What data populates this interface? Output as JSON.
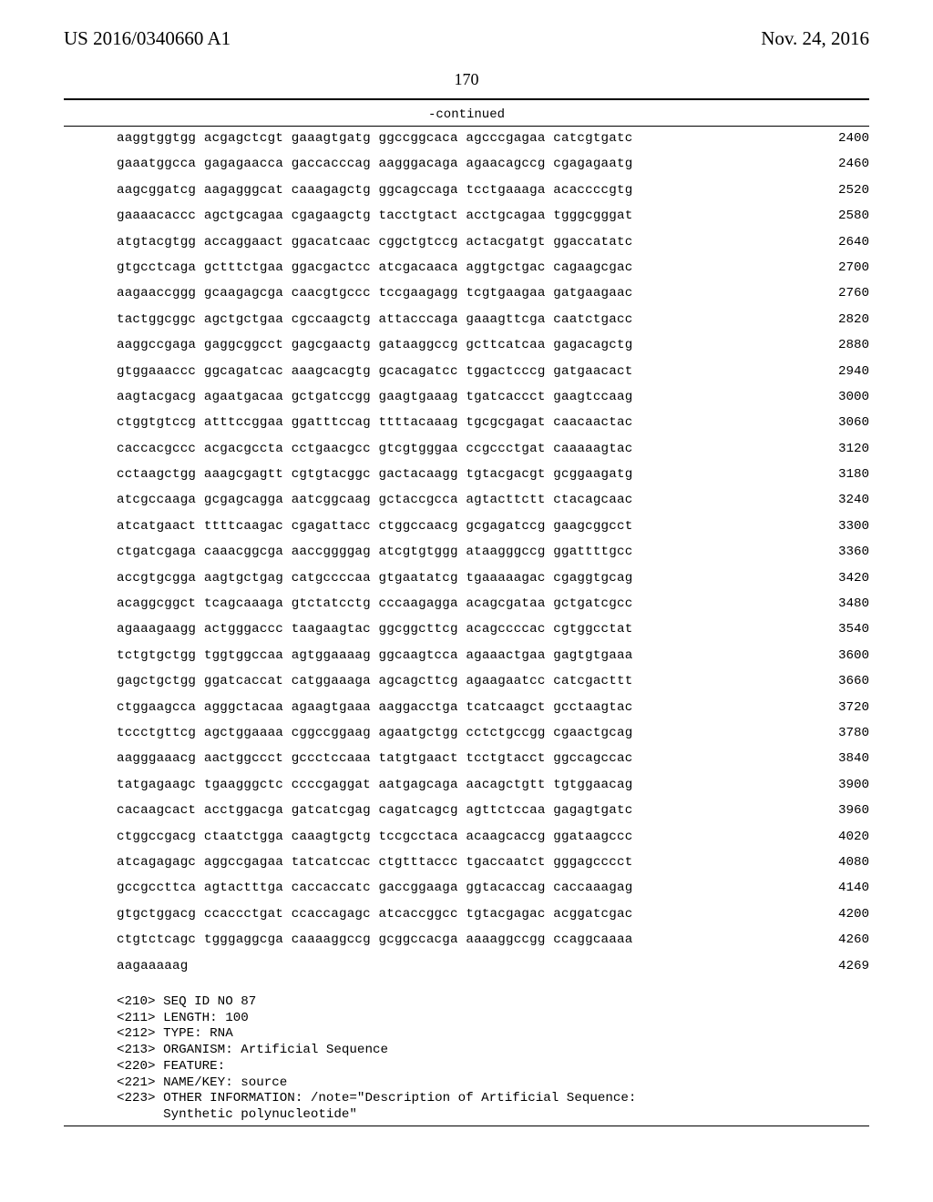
{
  "header": {
    "pub_number": "US 2016/0340660 A1",
    "pub_date": "Nov. 24, 2016"
  },
  "page_number": "170",
  "continued_label": "-continued",
  "sequence": {
    "rows": [
      {
        "g": [
          "aaggtggtgg",
          "acgagctcgt",
          "gaaagtgatg",
          "ggccggcaca",
          "agcccgagaa",
          "catcgtgatc"
        ],
        "pos": "2400"
      },
      {
        "g": [
          "gaaatggcca",
          "gagagaacca",
          "gaccacccag",
          "aagggacaga",
          "agaacagccg",
          "cgagagaatg"
        ],
        "pos": "2460"
      },
      {
        "g": [
          "aagcggatcg",
          "aagagggcat",
          "caaagagctg",
          "ggcagccaga",
          "tcctgaaaga",
          "acaccccgtg"
        ],
        "pos": "2520"
      },
      {
        "g": [
          "gaaaacaccc",
          "agctgcagaa",
          "cgagaagctg",
          "tacctgtact",
          "acctgcagaa",
          "tgggcgggat"
        ],
        "pos": "2580"
      },
      {
        "g": [
          "atgtacgtgg",
          "accaggaact",
          "ggacatcaac",
          "cggctgtccg",
          "actacgatgt",
          "ggaccatatc"
        ],
        "pos": "2640"
      },
      {
        "g": [
          "gtgcctcaga",
          "gctttctgaa",
          "ggacgactcc",
          "atcgacaaca",
          "aggtgctgac",
          "cagaagcgac"
        ],
        "pos": "2700"
      },
      {
        "g": [
          "aagaaccggg",
          "gcaagagcga",
          "caacgtgccc",
          "tccgaagagg",
          "tcgtgaagaa",
          "gatgaagaac"
        ],
        "pos": "2760"
      },
      {
        "g": [
          "tactggcggc",
          "agctgctgaa",
          "cgccaagctg",
          "attacccaga",
          "gaaagttcga",
          "caatctgacc"
        ],
        "pos": "2820"
      },
      {
        "g": [
          "aaggccgaga",
          "gaggcggcct",
          "gagcgaactg",
          "gataaggccg",
          "gcttcatcaa",
          "gagacagctg"
        ],
        "pos": "2880"
      },
      {
        "g": [
          "gtggaaaccc",
          "ggcagatcac",
          "aaagcacgtg",
          "gcacagatcc",
          "tggactcccg",
          "gatgaacact"
        ],
        "pos": "2940"
      },
      {
        "g": [
          "aagtacgacg",
          "agaatgacaa",
          "gctgatccgg",
          "gaagtgaaag",
          "tgatcaccct",
          "gaagtccaag"
        ],
        "pos": "3000"
      },
      {
        "g": [
          "ctggtgtccg",
          "atttccggaa",
          "ggatttccag",
          "ttttacaaag",
          "tgcgcgagat",
          "caacaactac"
        ],
        "pos": "3060"
      },
      {
        "g": [
          "caccacgccc",
          "acgacgccta",
          "cctgaacgcc",
          "gtcgtgggaa",
          "ccgccctgat",
          "caaaaagtac"
        ],
        "pos": "3120"
      },
      {
        "g": [
          "cctaagctgg",
          "aaagcgagtt",
          "cgtgtacggc",
          "gactacaagg",
          "tgtacgacgt",
          "gcggaagatg"
        ],
        "pos": "3180"
      },
      {
        "g": [
          "atcgccaaga",
          "gcgagcagga",
          "aatcggcaag",
          "gctaccgcca",
          "agtacttctt",
          "ctacagcaac"
        ],
        "pos": "3240"
      },
      {
        "g": [
          "atcatgaact",
          "ttttcaagac",
          "cgagattacc",
          "ctggccaacg",
          "gcgagatccg",
          "gaagcggcct"
        ],
        "pos": "3300"
      },
      {
        "g": [
          "ctgatcgaga",
          "caaacggcga",
          "aaccggggag",
          "atcgtgtggg",
          "ataagggccg",
          "ggattttgcc"
        ],
        "pos": "3360"
      },
      {
        "g": [
          "accgtgcgga",
          "aagtgctgag",
          "catgccccaa",
          "gtgaatatcg",
          "tgaaaaagac",
          "cgaggtgcag"
        ],
        "pos": "3420"
      },
      {
        "g": [
          "acaggcggct",
          "tcagcaaaga",
          "gtctatcctg",
          "cccaagagga",
          "acagcgataa",
          "gctgatcgcc"
        ],
        "pos": "3480"
      },
      {
        "g": [
          "agaaagaagg",
          "actgggaccc",
          "taagaagtac",
          "ggcggcttcg",
          "acagccccac",
          "cgtggcctat"
        ],
        "pos": "3540"
      },
      {
        "g": [
          "tctgtgctgg",
          "tggtggccaa",
          "agtggaaaag",
          "ggcaagtcca",
          "agaaactgaa",
          "gagtgtgaaa"
        ],
        "pos": "3600"
      },
      {
        "g": [
          "gagctgctgg",
          "ggatcaccat",
          "catggaaaga",
          "agcagcttcg",
          "agaagaatcc",
          "catcgacttt"
        ],
        "pos": "3660"
      },
      {
        "g": [
          "ctggaagcca",
          "agggctacaa",
          "agaagtgaaa",
          "aaggacctga",
          "tcatcaagct",
          "gcctaagtac"
        ],
        "pos": "3720"
      },
      {
        "g": [
          "tccctgttcg",
          "agctggaaaa",
          "cggccggaag",
          "agaatgctgg",
          "cctctgccgg",
          "cgaactgcag"
        ],
        "pos": "3780"
      },
      {
        "g": [
          "aagggaaacg",
          "aactggccct",
          "gccctccaaa",
          "tatgtgaact",
          "tcctgtacct",
          "ggccagccac"
        ],
        "pos": "3840"
      },
      {
        "g": [
          "tatgagaagc",
          "tgaagggctc",
          "ccccgaggat",
          "aatgagcaga",
          "aacagctgtt",
          "tgtggaacag"
        ],
        "pos": "3900"
      },
      {
        "g": [
          "cacaagcact",
          "acctggacga",
          "gatcatcgag",
          "cagatcagcg",
          "agttctccaa",
          "gagagtgatc"
        ],
        "pos": "3960"
      },
      {
        "g": [
          "ctggccgacg",
          "ctaatctgga",
          "caaagtgctg",
          "tccgcctaca",
          "acaagcaccg",
          "ggataagccc"
        ],
        "pos": "4020"
      },
      {
        "g": [
          "atcagagagc",
          "aggccgagaa",
          "tatcatccac",
          "ctgtttaccc",
          "tgaccaatct",
          "gggagcccct"
        ],
        "pos": "4080"
      },
      {
        "g": [
          "gccgccttca",
          "agtactttga",
          "caccaccatc",
          "gaccggaaga",
          "ggtacaccag",
          "caccaaagag"
        ],
        "pos": "4140"
      },
      {
        "g": [
          "gtgctggacg",
          "ccaccctgat",
          "ccaccagagc",
          "atcaccggcc",
          "tgtacgagac",
          "acggatcgac"
        ],
        "pos": "4200"
      },
      {
        "g": [
          "ctgtctcagc",
          "tgggaggcga",
          "caaaaggccg",
          "gcggccacga",
          "aaaaggccgg",
          "ccaggcaaaa"
        ],
        "pos": "4260"
      },
      {
        "g": [
          "aagaaaaag",
          "",
          "",
          "",
          "",
          ""
        ],
        "pos": "4269"
      }
    ]
  },
  "meta": [
    "<210> SEQ ID NO 87",
    "<211> LENGTH: 100",
    "<212> TYPE: RNA",
    "<213> ORGANISM: Artificial Sequence",
    "<220> FEATURE:",
    "<221> NAME/KEY: source",
    "<223> OTHER INFORMATION: /note=\"Description of Artificial Sequence:",
    "      Synthetic polynucleotide\""
  ]
}
